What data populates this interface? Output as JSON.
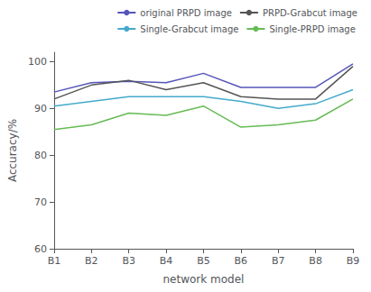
{
  "chart_data": {
    "type": "line",
    "categories": [
      "B1",
      "B2",
      "B3",
      "B4",
      "B5",
      "B6",
      "B7",
      "B8",
      "B9"
    ],
    "series": [
      {
        "name": "original PRPD image",
        "color": "#5555bb",
        "values": [
          93.5,
          95.5,
          95.8,
          95.5,
          97.5,
          94.5,
          94.5,
          94.5,
          99.5
        ]
      },
      {
        "name": "PRPD-Grabcut image",
        "color": "#555555",
        "values": [
          92.0,
          95.0,
          96.0,
          94.0,
          95.5,
          92.5,
          92.0,
          92.0,
          99.0
        ]
      },
      {
        "name": "Single-Grabcut image",
        "color": "#44aacc",
        "values": [
          90.5,
          91.5,
          92.5,
          92.5,
          92.5,
          91.5,
          90.0,
          91.0,
          94.0
        ]
      },
      {
        "name": "Single-PRPD image",
        "color": "#66bb55",
        "values": [
          85.5,
          86.5,
          89.0,
          88.5,
          90.5,
          86.0,
          86.5,
          87.5,
          92.0
        ]
      }
    ],
    "xlabel": "network model",
    "ylabel": "Accuracy/%",
    "ylim": [
      60,
      102
    ],
    "yticks": [
      60,
      70,
      80,
      90,
      100
    ],
    "grid": false,
    "legend": "upper right"
  }
}
